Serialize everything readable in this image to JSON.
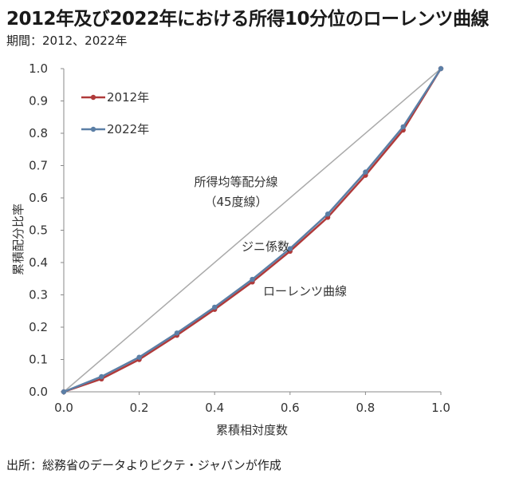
{
  "header": {
    "title": "2012年及び2022年における所得10分位のローレンツ曲線",
    "subtitle": "期間：2012、2022年"
  },
  "footer": {
    "source": "出所：総務省のデータよりピクテ・ジャパンが作成"
  },
  "chart_data": {
    "type": "line",
    "xlabel": "累積相対度数",
    "ylabel": "累積配分比率",
    "xlim": [
      0.0,
      1.0
    ],
    "ylim": [
      0.0,
      1.0
    ],
    "x_ticks": [
      "0.0",
      "0.2",
      "0.4",
      "0.6",
      "0.8",
      "1.0"
    ],
    "y_ticks": [
      "0.0",
      "0.1",
      "0.2",
      "0.3",
      "0.4",
      "0.5",
      "0.6",
      "0.7",
      "0.8",
      "0.9",
      "1.0"
    ],
    "grid": false,
    "legend_position": "top-left",
    "series": [
      {
        "name": "2012年",
        "color": "#b03a3a",
        "x": [
          0.0,
          0.1,
          0.2,
          0.3,
          0.4,
          0.5,
          0.6,
          0.7,
          0.8,
          0.9,
          1.0
        ],
        "y": [
          0.0,
          0.04,
          0.1,
          0.175,
          0.255,
          0.34,
          0.435,
          0.54,
          0.67,
          0.81,
          1.0
        ]
      },
      {
        "name": "2022年",
        "color": "#5b7fa6",
        "x": [
          0.0,
          0.1,
          0.2,
          0.3,
          0.4,
          0.5,
          0.6,
          0.7,
          0.8,
          0.9,
          1.0
        ],
        "y": [
          0.0,
          0.047,
          0.107,
          0.182,
          0.262,
          0.348,
          0.443,
          0.55,
          0.68,
          0.82,
          1.0
        ]
      },
      {
        "color": "#aaaaaa",
        "x": [
          0.0,
          1.0
        ],
        "y": [
          0.0,
          1.0
        ]
      }
    ],
    "annotations": {
      "equality_line": [
        "所得均等配分線",
        "（45度線）"
      ],
      "gini": "ジニ係数",
      "lorenz": "ローレンツ曲線"
    }
  }
}
